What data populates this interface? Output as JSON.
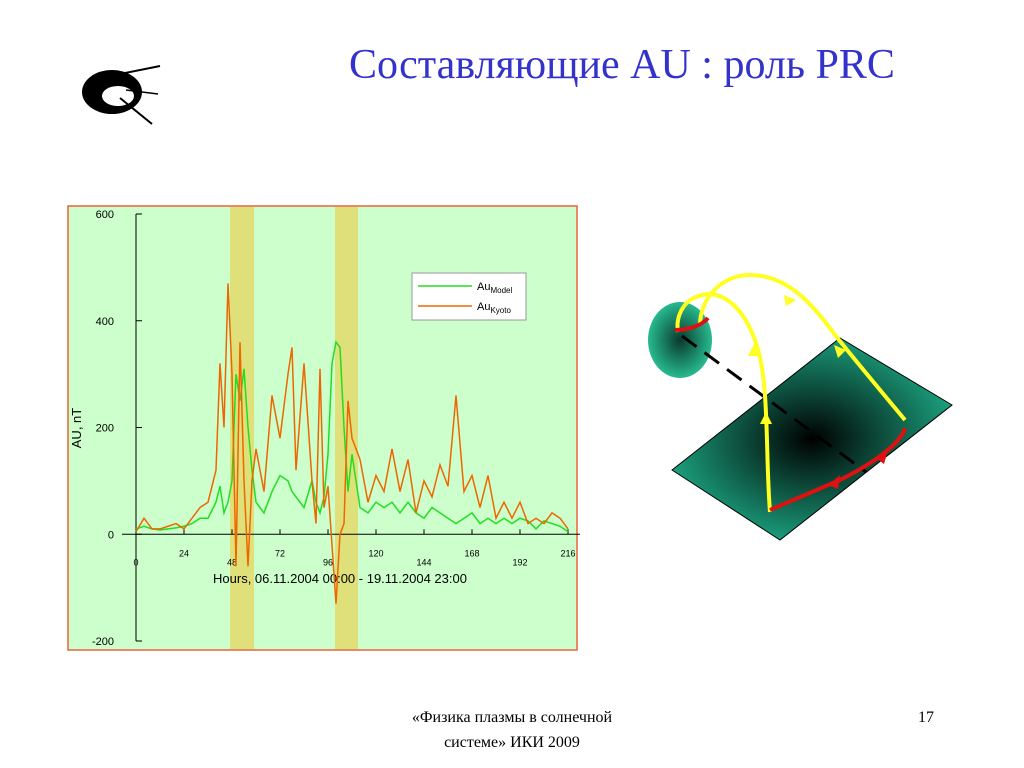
{
  "title": "Составляющие AU : роль PRC",
  "footer": [
    "«Физика плазмы в солнечной",
    "системе» ИКИ 2009"
  ],
  "page_number": "17",
  "chart_data": {
    "type": "line",
    "xlabel": "Hours, 06.11.2004 00:00 - 19.11.2004 23:00",
    "ylabel": "AU, nT",
    "xlim": [
      0,
      216
    ],
    "xticks": [
      0,
      24,
      48,
      72,
      96,
      120,
      144,
      168,
      192,
      216
    ],
    "ylim": [
      -200,
      600
    ],
    "yticks": [
      600,
      400,
      200,
      0,
      -200
    ],
    "background": "#ccffcc",
    "highlight_color": "#e0e07a",
    "highlight_spans": [
      [
        47,
        59
      ],
      [
        99.5,
        111
      ]
    ],
    "x": [
      0,
      4,
      8,
      12,
      16,
      20,
      24,
      28,
      32,
      36,
      40,
      42,
      44,
      46,
      48,
      50,
      52,
      54,
      56,
      58,
      60,
      64,
      68,
      72,
      76,
      78,
      80,
      84,
      88,
      90,
      92,
      94,
      96,
      98,
      100,
      102,
      104,
      106,
      108,
      112,
      116,
      120,
      124,
      128,
      132,
      136,
      140,
      144,
      148,
      152,
      156,
      160,
      164,
      168,
      172,
      176,
      180,
      184,
      188,
      192,
      196,
      200,
      204,
      208,
      212,
      216
    ],
    "series": [
      {
        "name": "Au",
        "subscript": "Model",
        "color": "#22dd22",
        "values": [
          10,
          15,
          10,
          8,
          10,
          12,
          15,
          20,
          30,
          30,
          60,
          90,
          40,
          60,
          100,
          300,
          250,
          310,
          200,
          120,
          60,
          40,
          80,
          110,
          100,
          80,
          70,
          50,
          100,
          60,
          40,
          70,
          150,
          320,
          360,
          350,
          200,
          80,
          150,
          50,
          40,
          60,
          50,
          60,
          40,
          60,
          40,
          30,
          50,
          40,
          30,
          20,
          30,
          40,
          20,
          30,
          20,
          30,
          20,
          30,
          25,
          10,
          25,
          20,
          15,
          5
        ]
      },
      {
        "name": "Au",
        "subscript": "Kyoto",
        "color": "#ee6600",
        "values": [
          5,
          30,
          10,
          10,
          15,
          20,
          10,
          30,
          50,
          60,
          120,
          320,
          200,
          470,
          300,
          -60,
          360,
          100,
          -60,
          100,
          160,
          80,
          260,
          180,
          300,
          350,
          120,
          320,
          100,
          20,
          310,
          50,
          90,
          -20,
          -130,
          0,
          20,
          250,
          180,
          140,
          60,
          110,
          80,
          160,
          80,
          140,
          40,
          100,
          70,
          130,
          90,
          260,
          80,
          110,
          50,
          110,
          30,
          60,
          30,
          60,
          20,
          30,
          20,
          40,
          30,
          10
        ]
      }
    ]
  }
}
